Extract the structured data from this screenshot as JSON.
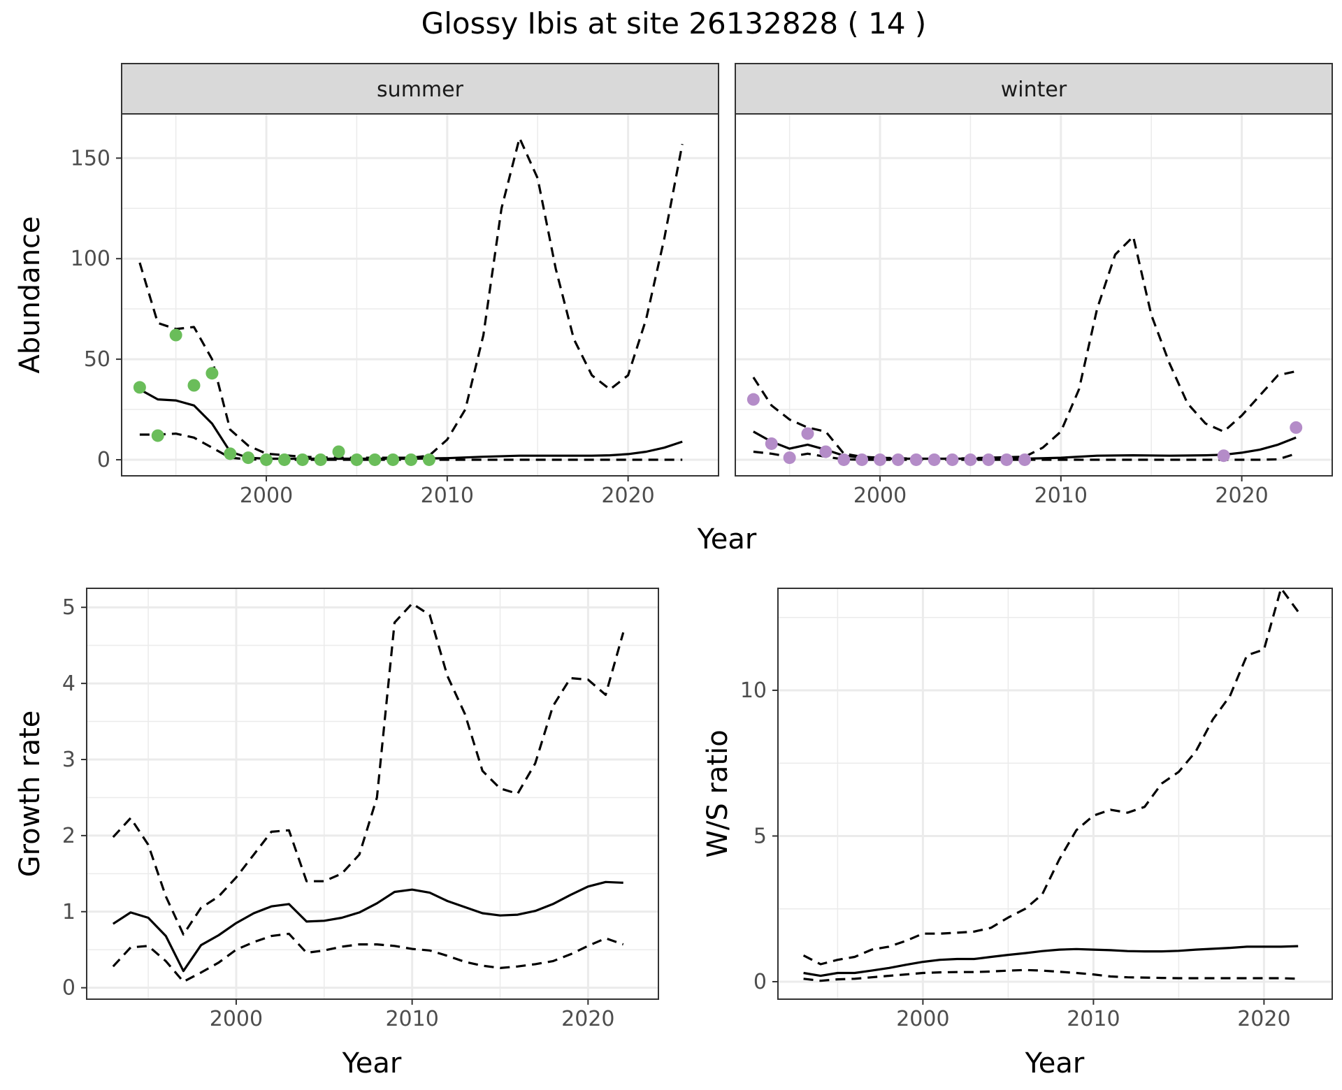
{
  "figure": {
    "title": "Glossy Ibis at site 26132828 ( 14 )"
  },
  "colors": {
    "summer_points": "#6abd5a",
    "winter_points": "#b48cc8",
    "line": "#000000",
    "strip_bg": "#d9d9d9",
    "grid": "#ebebeb"
  },
  "chart_data": [
    {
      "type": "line",
      "panel": "summer",
      "strip_label": "summer",
      "xlabel": "Year",
      "ylabel": "Abundance",
      "xlim": [
        1992,
        2025
      ],
      "ylim": [
        -8,
        172
      ],
      "xticks": [
        2000,
        2010,
        2020
      ],
      "yticks": [
        0,
        50,
        100,
        150
      ],
      "grid": true,
      "points": {
        "x": [
          1993,
          1994,
          1995,
          1996,
          1997,
          1998,
          1999,
          2000,
          2001,
          2002,
          2003,
          2004,
          2005,
          2006,
          2007,
          2008,
          2009
        ],
        "y": [
          36,
          12,
          62,
          37,
          43,
          3,
          1,
          0,
          0,
          0,
          0,
          4,
          0,
          0,
          0,
          0,
          0
        ]
      },
      "series": [
        {
          "style": "solid",
          "x": [
            1993,
            1994,
            1995,
            1996,
            1997,
            1998,
            1999,
            2000,
            2002,
            2004,
            2006,
            2008,
            2010,
            2012,
            2014,
            2016,
            2018,
            2019,
            2020,
            2021,
            2022,
            2023
          ],
          "y": [
            35,
            30,
            29.5,
            27,
            18,
            4,
            1,
            0.5,
            0.5,
            0.5,
            0.5,
            0.5,
            0.8,
            1.5,
            2,
            2,
            2,
            2.2,
            2.8,
            4,
            6,
            9
          ]
        },
        {
          "style": "dashed",
          "x": [
            1993,
            1994,
            1995,
            1996,
            1997,
            1998,
            1999,
            2000,
            2002,
            2004,
            2006,
            2008,
            2009,
            2010,
            2011,
            2012,
            2013,
            2014,
            2015,
            2016,
            2017,
            2018,
            2019,
            2020,
            2021,
            2022,
            2023
          ],
          "y": [
            98,
            68,
            65,
            66,
            50,
            15,
            7,
            3,
            1.5,
            1,
            1,
            1,
            2,
            10,
            25,
            62,
            125,
            160,
            140,
            95,
            60,
            42,
            35,
            42,
            70,
            110,
            157
          ]
        },
        {
          "style": "dashed",
          "x": [
            1993,
            1994,
            1995,
            1996,
            1997,
            1998,
            1999,
            2000,
            2005,
            2010,
            2015,
            2020,
            2023
          ],
          "y": [
            12.5,
            12.5,
            13,
            11,
            6,
            1,
            0.2,
            0,
            0,
            0,
            0,
            0,
            0
          ]
        }
      ]
    },
    {
      "type": "line",
      "panel": "winter",
      "strip_label": "winter",
      "xlabel": "Year",
      "ylabel": "",
      "xlim": [
        1992,
        2025
      ],
      "ylim": [
        -8,
        172
      ],
      "xticks": [
        2000,
        2010,
        2020
      ],
      "yticks": [
        0,
        50,
        100,
        150
      ],
      "grid": true,
      "points": {
        "x": [
          1993,
          1994,
          1995,
          1996,
          1997,
          1998,
          1999,
          2000,
          2001,
          2002,
          2003,
          2004,
          2005,
          2006,
          2007,
          2008,
          2019,
          2023
        ],
        "y": [
          30,
          8,
          1,
          13,
          4,
          0,
          0,
          0,
          0,
          0,
          0,
          0,
          0,
          0,
          0,
          0,
          2,
          16
        ]
      },
      "series": [
        {
          "style": "solid",
          "x": [
            1993,
            1994,
            1995,
            1996,
            1997,
            1998,
            1999,
            2000,
            2002,
            2004,
            2006,
            2008,
            2010,
            2012,
            2014,
            2016,
            2018,
            2019,
            2020,
            2021,
            2022,
            2023
          ],
          "y": [
            14,
            9,
            5.5,
            7.5,
            5,
            2,
            1,
            0.5,
            0.5,
            0.5,
            0.5,
            0.5,
            1,
            2,
            2.2,
            2,
            2.2,
            2.5,
            3.5,
            5,
            7.5,
            11
          ]
        },
        {
          "style": "dashed",
          "x": [
            1993,
            1994,
            1995,
            1996,
            1997,
            1998,
            1999,
            2000,
            2002,
            2004,
            2006,
            2008,
            2009,
            2010,
            2011,
            2012,
            2013,
            2014,
            2015,
            2016,
            2017,
            2018,
            2019,
            2020,
            2021,
            2022,
            2023
          ],
          "y": [
            41,
            27,
            20,
            16,
            14,
            3,
            1.5,
            1,
            0.5,
            0.5,
            1,
            1.5,
            6,
            14,
            35,
            75,
            102,
            111,
            72,
            48,
            28,
            18,
            14,
            22,
            32,
            42,
            44
          ]
        },
        {
          "style": "dashed",
          "x": [
            1993,
            1994,
            1995,
            1996,
            1997,
            1998,
            1999,
            2000,
            2005,
            2010,
            2015,
            2020,
            2021,
            2022,
            2023
          ],
          "y": [
            4,
            3,
            1.5,
            3,
            1.5,
            0.2,
            0,
            0,
            0,
            0,
            0,
            0,
            0,
            0.2,
            3
          ]
        }
      ]
    },
    {
      "type": "line",
      "panel": "growth",
      "xlabel": "Year",
      "ylabel": "Growth rate",
      "xlim": [
        1991.5,
        2024
      ],
      "ylim": [
        -0.15,
        5.25
      ],
      "xticks": [
        2000,
        2010,
        2020
      ],
      "yticks": [
        0,
        1,
        2,
        3,
        4,
        5
      ],
      "grid": true,
      "series": [
        {
          "style": "solid",
          "x": [
            1993,
            1994,
            1995,
            1996,
            1997,
            1998,
            1999,
            2000,
            2001,
            2002,
            2003,
            2004,
            2005,
            2006,
            2007,
            2008,
            2009,
            2010,
            2011,
            2012,
            2013,
            2014,
            2015,
            2016,
            2017,
            2018,
            2019,
            2020,
            2021,
            2022
          ],
          "y": [
            0.84,
            0.99,
            0.92,
            0.68,
            0.22,
            0.56,
            0.69,
            0.85,
            0.98,
            1.07,
            1.1,
            0.87,
            0.88,
            0.92,
            0.99,
            1.11,
            1.26,
            1.29,
            1.25,
            1.14,
            1.06,
            0.98,
            0.95,
            0.96,
            1.01,
            1.1,
            1.22,
            1.33,
            1.39,
            1.38
          ]
        },
        {
          "style": "dashed",
          "x": [
            1993,
            1994,
            1995,
            1996,
            1997,
            1998,
            1999,
            2000,
            2001,
            2002,
            2003,
            2004,
            2005,
            2006,
            2007,
            2008,
            2009,
            2010,
            2011,
            2012,
            2013,
            2014,
            2015,
            2016,
            2017,
            2018,
            2019,
            2020,
            2021,
            2022
          ],
          "y": [
            1.98,
            2.23,
            1.88,
            1.2,
            0.7,
            1.05,
            1.2,
            1.45,
            1.75,
            2.05,
            2.07,
            1.4,
            1.4,
            1.5,
            1.75,
            2.5,
            4.8,
            5.05,
            4.9,
            4.1,
            3.6,
            2.85,
            2.62,
            2.55,
            2.95,
            3.7,
            4.07,
            4.05,
            3.85,
            4.67
          ]
        },
        {
          "style": "dashed",
          "x": [
            1993,
            1994,
            1995,
            1996,
            1997,
            1998,
            1999,
            2000,
            2001,
            2002,
            2003,
            2004,
            2005,
            2006,
            2007,
            2008,
            2009,
            2010,
            2011,
            2012,
            2013,
            2014,
            2015,
            2016,
            2017,
            2018,
            2019,
            2020,
            2021,
            2022
          ],
          "y": [
            0.28,
            0.53,
            0.55,
            0.35,
            0.08,
            0.2,
            0.33,
            0.5,
            0.6,
            0.68,
            0.71,
            0.46,
            0.49,
            0.54,
            0.57,
            0.57,
            0.55,
            0.51,
            0.49,
            0.42,
            0.34,
            0.29,
            0.26,
            0.28,
            0.31,
            0.35,
            0.44,
            0.55,
            0.65,
            0.57
          ]
        }
      ]
    },
    {
      "type": "line",
      "panel": "ratio",
      "xlabel": "Year",
      "ylabel": "W/S ratio",
      "xlim": [
        1991.5,
        2024
      ],
      "ylim": [
        -0.6,
        13.5
      ],
      "xticks": [
        2000,
        2010,
        2020
      ],
      "yticks": [
        0,
        5,
        10
      ],
      "grid": true,
      "series": [
        {
          "style": "solid",
          "x": [
            1993,
            1994,
            1995,
            1996,
            1997,
            1998,
            1999,
            2000,
            2001,
            2002,
            2003,
            2004,
            2005,
            2006,
            2007,
            2008,
            2009,
            2010,
            2011,
            2012,
            2013,
            2014,
            2015,
            2016,
            2017,
            2018,
            2019,
            2020,
            2021,
            2022
          ],
          "y": [
            0.3,
            0.2,
            0.3,
            0.3,
            0.38,
            0.47,
            0.58,
            0.68,
            0.75,
            0.78,
            0.78,
            0.85,
            0.92,
            0.98,
            1.05,
            1.1,
            1.12,
            1.1,
            1.08,
            1.05,
            1.04,
            1.04,
            1.06,
            1.1,
            1.13,
            1.16,
            1.2,
            1.2,
            1.2,
            1.22
          ]
        },
        {
          "style": "dashed",
          "x": [
            1993,
            1994,
            1995,
            1996,
            1997,
            1998,
            1999,
            2000,
            2001,
            2002,
            2003,
            2004,
            2005,
            2006,
            2007,
            2008,
            2009,
            2010,
            2011,
            2012,
            2013,
            2014,
            2015,
            2016,
            2017,
            2018,
            2019,
            2020,
            2021,
            2022
          ],
          "y": [
            0.9,
            0.6,
            0.75,
            0.85,
            1.1,
            1.2,
            1.4,
            1.65,
            1.65,
            1.68,
            1.72,
            1.85,
            2.2,
            2.5,
            3.0,
            4.2,
            5.2,
            5.7,
            5.9,
            5.8,
            6.0,
            6.8,
            7.2,
            7.9,
            9.0,
            9.8,
            11.2,
            11.4,
            13.5,
            12.7
          ]
        },
        {
          "style": "dashed",
          "x": [
            1993,
            1994,
            1995,
            1996,
            1997,
            1998,
            1999,
            2000,
            2001,
            2002,
            2003,
            2004,
            2005,
            2006,
            2007,
            2008,
            2009,
            2010,
            2011,
            2012,
            2013,
            2014,
            2015,
            2016,
            2017,
            2018,
            2019,
            2020,
            2021,
            2022
          ],
          "y": [
            0.1,
            0.03,
            0.08,
            0.1,
            0.15,
            0.2,
            0.25,
            0.3,
            0.32,
            0.33,
            0.33,
            0.35,
            0.38,
            0.4,
            0.38,
            0.34,
            0.3,
            0.25,
            0.18,
            0.15,
            0.14,
            0.13,
            0.12,
            0.12,
            0.12,
            0.12,
            0.12,
            0.12,
            0.12,
            0.1
          ]
        }
      ]
    }
  ]
}
